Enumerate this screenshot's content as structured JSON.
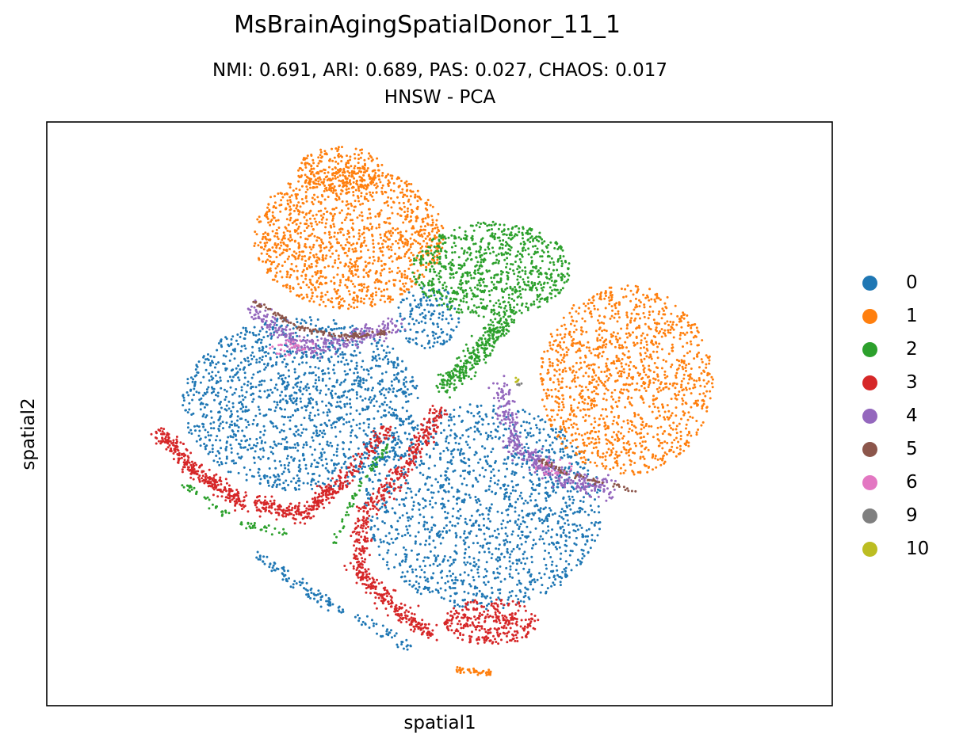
{
  "chart_data": {
    "type": "scatter",
    "title": "MsBrainAgingSpatialDonor_11_1",
    "subtitle_line1": "NMI: 0.691,  ARI: 0.689,  PAS: 0.027,  CHAOS: 0.017",
    "subtitle_line2": "HNSW - PCA",
    "xlabel": "spatial1",
    "ylabel": "spatial2",
    "xticks": false,
    "yticks": false,
    "legend_position": "right",
    "series": [
      {
        "name": "0",
        "color": "#1f77b4"
      },
      {
        "name": "1",
        "color": "#ff7f0e"
      },
      {
        "name": "2",
        "color": "#2ca02c"
      },
      {
        "name": "3",
        "color": "#d62728"
      },
      {
        "name": "4",
        "color": "#9467bd"
      },
      {
        "name": "5",
        "color": "#8c564b"
      },
      {
        "name": "6",
        "color": "#e377c2"
      },
      {
        "name": "9",
        "color": "#7f7f7f"
      },
      {
        "name": "10",
        "color": "#bcbd22"
      }
    ]
  }
}
